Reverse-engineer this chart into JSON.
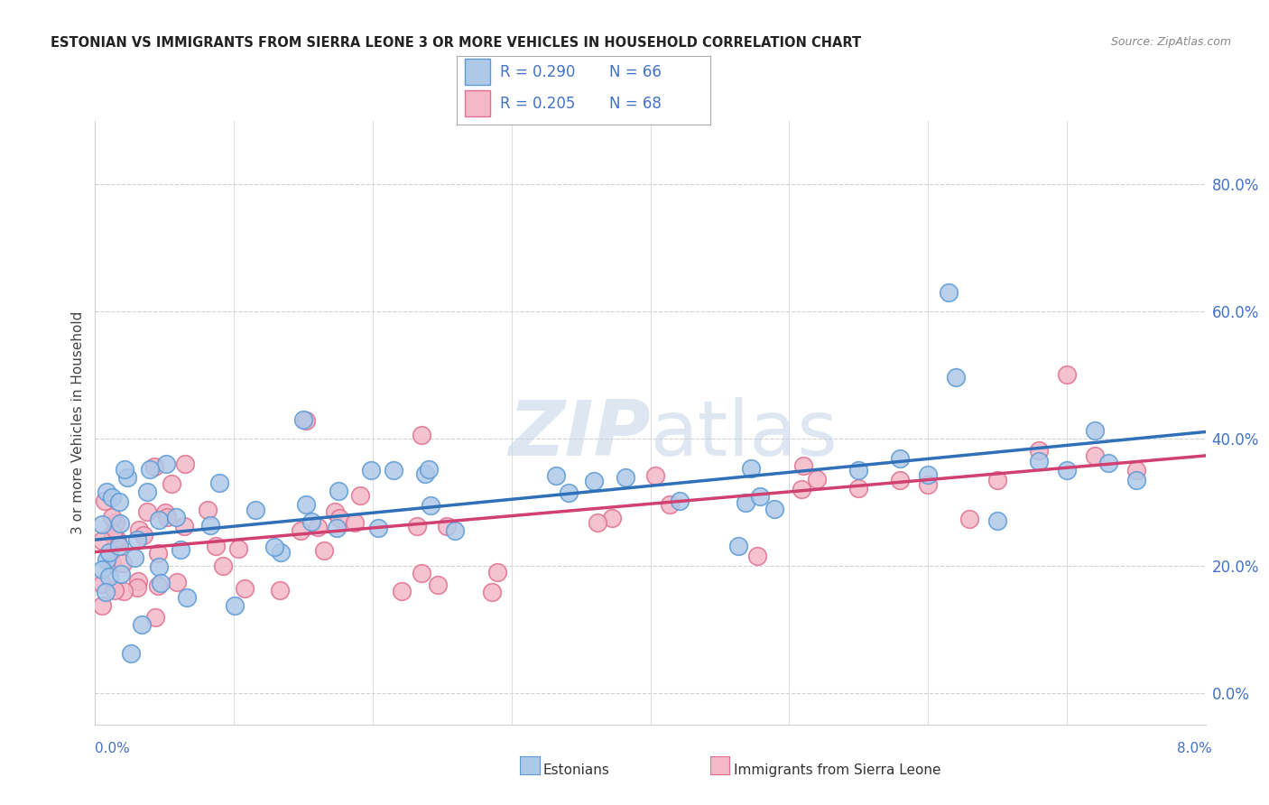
{
  "title": "ESTONIAN VS IMMIGRANTS FROM SIERRA LEONE 3 OR MORE VEHICLES IN HOUSEHOLD CORRELATION CHART",
  "source": "Source: ZipAtlas.com",
  "ylabel": "3 or more Vehicles in Household",
  "xlim": [
    0.0,
    8.0
  ],
  "ylim": [
    -5.0,
    90.0
  ],
  "yticks": [
    0.0,
    20.0,
    40.0,
    60.0,
    80.0
  ],
  "ytick_labels": [
    "0.0%",
    "20.0%",
    "40.0%",
    "60.0%",
    "80.0%"
  ],
  "legend_box": {
    "R_blue": "0.290",
    "N_blue": "66",
    "R_pink": "0.205",
    "N_pink": "68"
  },
  "blue_fill": "#aec8e8",
  "pink_fill": "#f4b8c8",
  "blue_edge": "#5b9bd5",
  "pink_edge": "#e07090",
  "blue_line": "#3070b8",
  "pink_line": "#d04070",
  "text_color": "#4472c4",
  "grid_color": "#d0d0d0",
  "watermark": "ZIPatlas"
}
